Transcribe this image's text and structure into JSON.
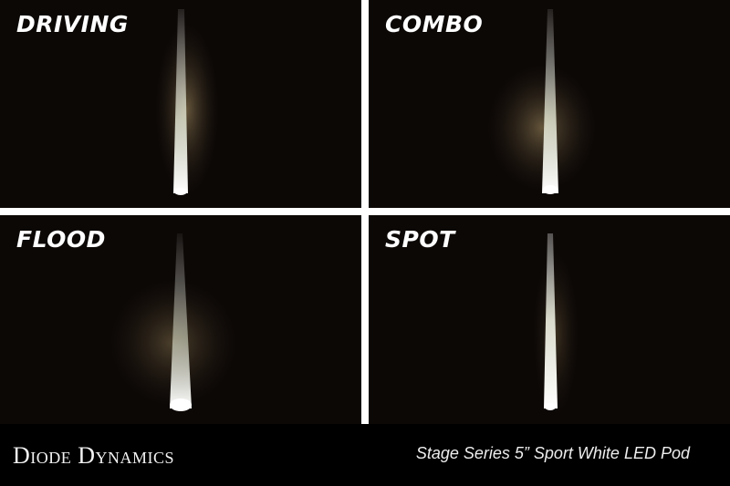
{
  "panels": [
    {
      "label": "DRIVING",
      "beam": "driving"
    },
    {
      "label": "COMBO",
      "beam": "combo"
    },
    {
      "label": "FLOOD",
      "beam": "flood"
    },
    {
      "label": "SPOT",
      "beam": "spot"
    }
  ],
  "footer": {
    "brand": "Diode Dynamics",
    "product": "Stage Series 5” Sport White LED Pod"
  },
  "colors": {
    "background": "#0c0806",
    "divider": "#ffffff",
    "beam": "#f4f6ea",
    "glow": "#6b5a3a"
  }
}
